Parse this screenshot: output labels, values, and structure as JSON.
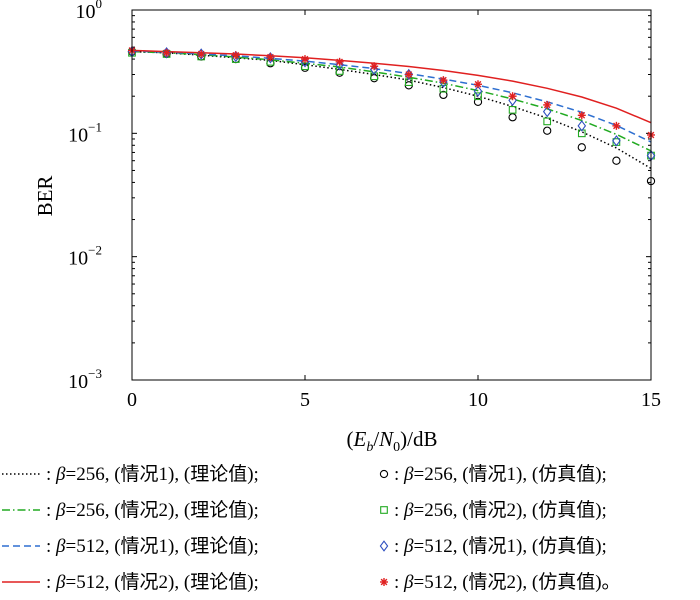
{
  "chart_data": {
    "type": "line",
    "y_scale": "log",
    "xlim": [
      0,
      15
    ],
    "ylim": [
      0.001,
      1
    ],
    "x_ticks": [
      0,
      5,
      10,
      15
    ],
    "y_ticks": [
      {
        "value": 1,
        "base": "10",
        "exp": "0"
      },
      {
        "value": 0.1,
        "base": "10",
        "exp": "−1"
      },
      {
        "value": 0.01,
        "base": "10",
        "exp": "−2"
      },
      {
        "value": 0.001,
        "base": "10",
        "exp": "−3"
      }
    ],
    "ylabel": "BER",
    "xlabel": "(E_b/N_0)/dB",
    "x": [
      0,
      1,
      2,
      3,
      4,
      5,
      6,
      7,
      8,
      9,
      10,
      11,
      12,
      13,
      14,
      15
    ],
    "series": [
      {
        "name": "β=256, (情况1), (理论值)",
        "kind": "line",
        "style": "dotted",
        "color": "#000000",
        "values": [
          0.46,
          0.45,
          0.43,
          0.41,
          0.39,
          0.36,
          0.33,
          0.3,
          0.27,
          0.235,
          0.2,
          0.165,
          0.133,
          0.103,
          0.076,
          0.052
        ]
      },
      {
        "name": "β=256, (情况2), (理论值)",
        "kind": "line",
        "style": "dashdot",
        "color": "#22aa22",
        "values": [
          0.46,
          0.45,
          0.435,
          0.415,
          0.395,
          0.37,
          0.345,
          0.315,
          0.285,
          0.255,
          0.222,
          0.19,
          0.158,
          0.127,
          0.098,
          0.072
        ]
      },
      {
        "name": "β=512, (情况1), (理论值)",
        "kind": "line",
        "style": "dashed",
        "color": "#2e6fd0",
        "values": [
          0.465,
          0.455,
          0.44,
          0.425,
          0.405,
          0.385,
          0.36,
          0.335,
          0.305,
          0.275,
          0.245,
          0.213,
          0.18,
          0.148,
          0.116,
          0.085
        ]
      },
      {
        "name": "β=512, (情况2), (理论值)",
        "kind": "line",
        "style": "solid",
        "color": "#e02020",
        "values": [
          0.47,
          0.46,
          0.45,
          0.44,
          0.425,
          0.41,
          0.39,
          0.37,
          0.348,
          0.323,
          0.295,
          0.265,
          0.232,
          0.197,
          0.16,
          0.122
        ]
      },
      {
        "name": "β=256, (情况1), (仿真值)",
        "kind": "marker",
        "marker": "circle",
        "color": "#000000",
        "values": [
          0.46,
          0.44,
          0.42,
          0.4,
          0.37,
          0.34,
          0.31,
          0.28,
          0.245,
          0.205,
          0.18,
          0.135,
          0.105,
          0.077,
          0.06,
          0.041
        ]
      },
      {
        "name": "β=256, (情况2), (仿真值)",
        "kind": "marker",
        "marker": "square",
        "color": "#22aa22",
        "values": [
          0.45,
          0.44,
          0.42,
          0.4,
          0.38,
          0.35,
          0.32,
          0.29,
          0.26,
          0.23,
          0.2,
          0.155,
          0.125,
          0.1,
          0.085,
          0.066
        ]
      },
      {
        "name": "β=512, (情况1), (仿真值)",
        "kind": "marker",
        "marker": "diamond",
        "color": "#2e4fc0",
        "values": [
          0.46,
          0.45,
          0.44,
          0.42,
          0.41,
          0.38,
          0.36,
          0.33,
          0.3,
          0.26,
          0.22,
          0.185,
          0.15,
          0.115,
          0.087,
          0.066
        ]
      },
      {
        "name": "β=512, (情况2), (仿真值)",
        "kind": "marker",
        "marker": "asterisk",
        "color": "#e02020",
        "values": [
          0.47,
          0.45,
          0.44,
          0.43,
          0.415,
          0.4,
          0.38,
          0.35,
          0.3,
          0.27,
          0.25,
          0.2,
          0.17,
          0.14,
          0.115,
          0.097
        ]
      }
    ],
    "legend": {
      "placement": "bottom",
      "columns": 2,
      "entries": [
        {
          "series": 0,
          "prefix": ": ",
          "beta": "β",
          "text": "=256, (情况1), (理论值);"
        },
        {
          "series": 4,
          "prefix": ": ",
          "beta": "β",
          "text": "=256, (情况1), (仿真值);"
        },
        {
          "series": 1,
          "prefix": ": ",
          "beta": "β",
          "text": "=256, (情况2), (理论值);"
        },
        {
          "series": 5,
          "prefix": ": ",
          "beta": "β",
          "text": "=256, (情况2), (仿真值);"
        },
        {
          "series": 2,
          "prefix": ": ",
          "beta": "β",
          "text": "=512, (情况1), (理论值);"
        },
        {
          "series": 6,
          "prefix": ": ",
          "beta": "β",
          "text": "=512, (情况1), (仿真值);"
        },
        {
          "series": 3,
          "prefix": ": ",
          "beta": "β",
          "text": "=512, (情况2), (理论值);"
        },
        {
          "series": 7,
          "prefix": ": ",
          "beta": "β",
          "text": "=512, (情况2), (仿真值)。"
        }
      ]
    }
  }
}
